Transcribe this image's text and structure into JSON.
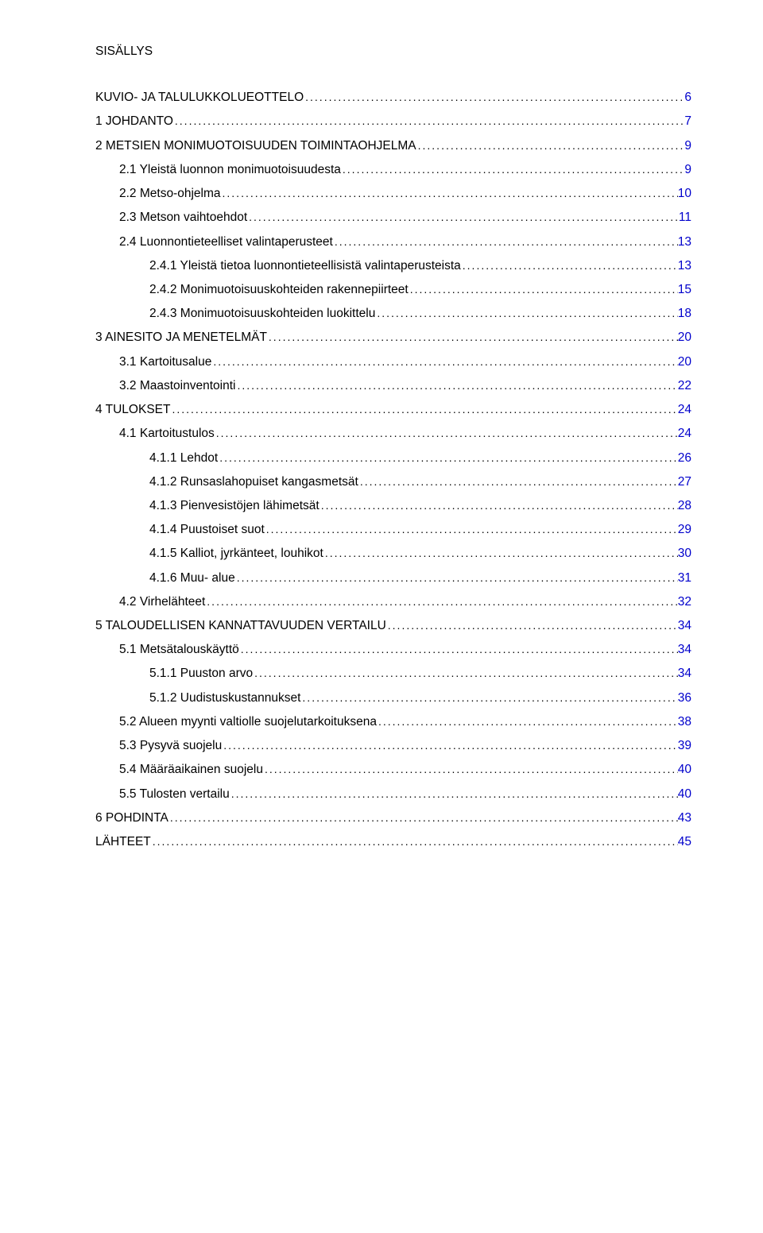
{
  "title": "SISÄLLYS",
  "link_color": "#0000cc",
  "text_color": "#000000",
  "background_color": "#ffffff",
  "font_size_pt": 12,
  "entries": [
    {
      "label": "KUVIO- JA TALULUKKOLUEOTTELO",
      "page": "6",
      "level": 0
    },
    {
      "label": "1 JOHDANTO",
      "page": "7",
      "level": 0
    },
    {
      "label": "2 METSIEN MONIMUOTOISUUDEN TOIMINTAOHJELMA",
      "page": "9",
      "level": 0
    },
    {
      "label": "2.1   Yleistä luonnon monimuotoisuudesta",
      "page": "9",
      "level": 1
    },
    {
      "label": "2.2   Metso-ohjelma",
      "page": "10",
      "level": 1
    },
    {
      "label": "2.3   Metson vaihtoehdot",
      "page": "11",
      "level": 1
    },
    {
      "label": "2.4   Luonnontieteelliset valintaperusteet",
      "page": "13",
      "level": 1
    },
    {
      "label": "2.4.1    Yleistä tietoa luonnontieteellisistä valintaperusteista",
      "page": "13",
      "level": 2
    },
    {
      "label": "2.4.2    Monimuotoisuuskohteiden rakennepiirteet",
      "page": "15",
      "level": 2
    },
    {
      "label": "2.4.3    Monimuotoisuuskohteiden luokittelu",
      "page": "18",
      "level": 2
    },
    {
      "label": "3 AINESITO JA MENETELMÄT",
      "page": "20",
      "level": 0
    },
    {
      "label": "3.1   Kartoitusalue",
      "page": "20",
      "level": 1
    },
    {
      "label": "3.2   Maastoinventointi",
      "page": "22",
      "level": 1
    },
    {
      "label": "4 TULOKSET",
      "page": "24",
      "level": 0
    },
    {
      "label": "4.1   Kartoitustulos",
      "page": "24",
      "level": 1
    },
    {
      "label": "4.1.1    Lehdot",
      "page": "26",
      "level": 2
    },
    {
      "label": "4.1.2    Runsaslahopuiset kangasmetsät",
      "page": "27",
      "level": 2
    },
    {
      "label": "4.1.3    Pienvesistöjen lähimetsät",
      "page": "28",
      "level": 2
    },
    {
      "label": "4.1.4    Puustoiset suot",
      "page": "29",
      "level": 2
    },
    {
      "label": "4.1.5    Kalliot, jyrkänteet, louhikot",
      "page": "30",
      "level": 2
    },
    {
      "label": "4.1.6    Muu- alue",
      "page": "31",
      "level": 2
    },
    {
      "label": "4.2   Virhelähteet",
      "page": "32",
      "level": 1
    },
    {
      "label": "5 TALOUDELLISEN KANNATTAVUUDEN VERTAILU",
      "page": "34",
      "level": 0
    },
    {
      "label": "5.1   Metsätalouskäyttö",
      "page": "34",
      "level": 1
    },
    {
      "label": "5.1.1    Puuston arvo",
      "page": "34",
      "level": 2
    },
    {
      "label": "5.1.2    Uudistuskustannukset",
      "page": "36",
      "level": 2
    },
    {
      "label": "5.2   Alueen myynti valtiolle suojelutarkoituksena",
      "page": "38",
      "level": 1
    },
    {
      "label": "5.3   Pysyvä suojelu",
      "page": "39",
      "level": 1
    },
    {
      "label": "5.4   Määräaikainen suojelu",
      "page": "40",
      "level": 1
    },
    {
      "label": "5.5   Tulosten vertailu",
      "page": "40",
      "level": 1
    },
    {
      "label": "6 POHDINTA",
      "page": "43",
      "level": 0
    },
    {
      "label": "LÄHTEET",
      "page": "45",
      "level": 0
    }
  ]
}
